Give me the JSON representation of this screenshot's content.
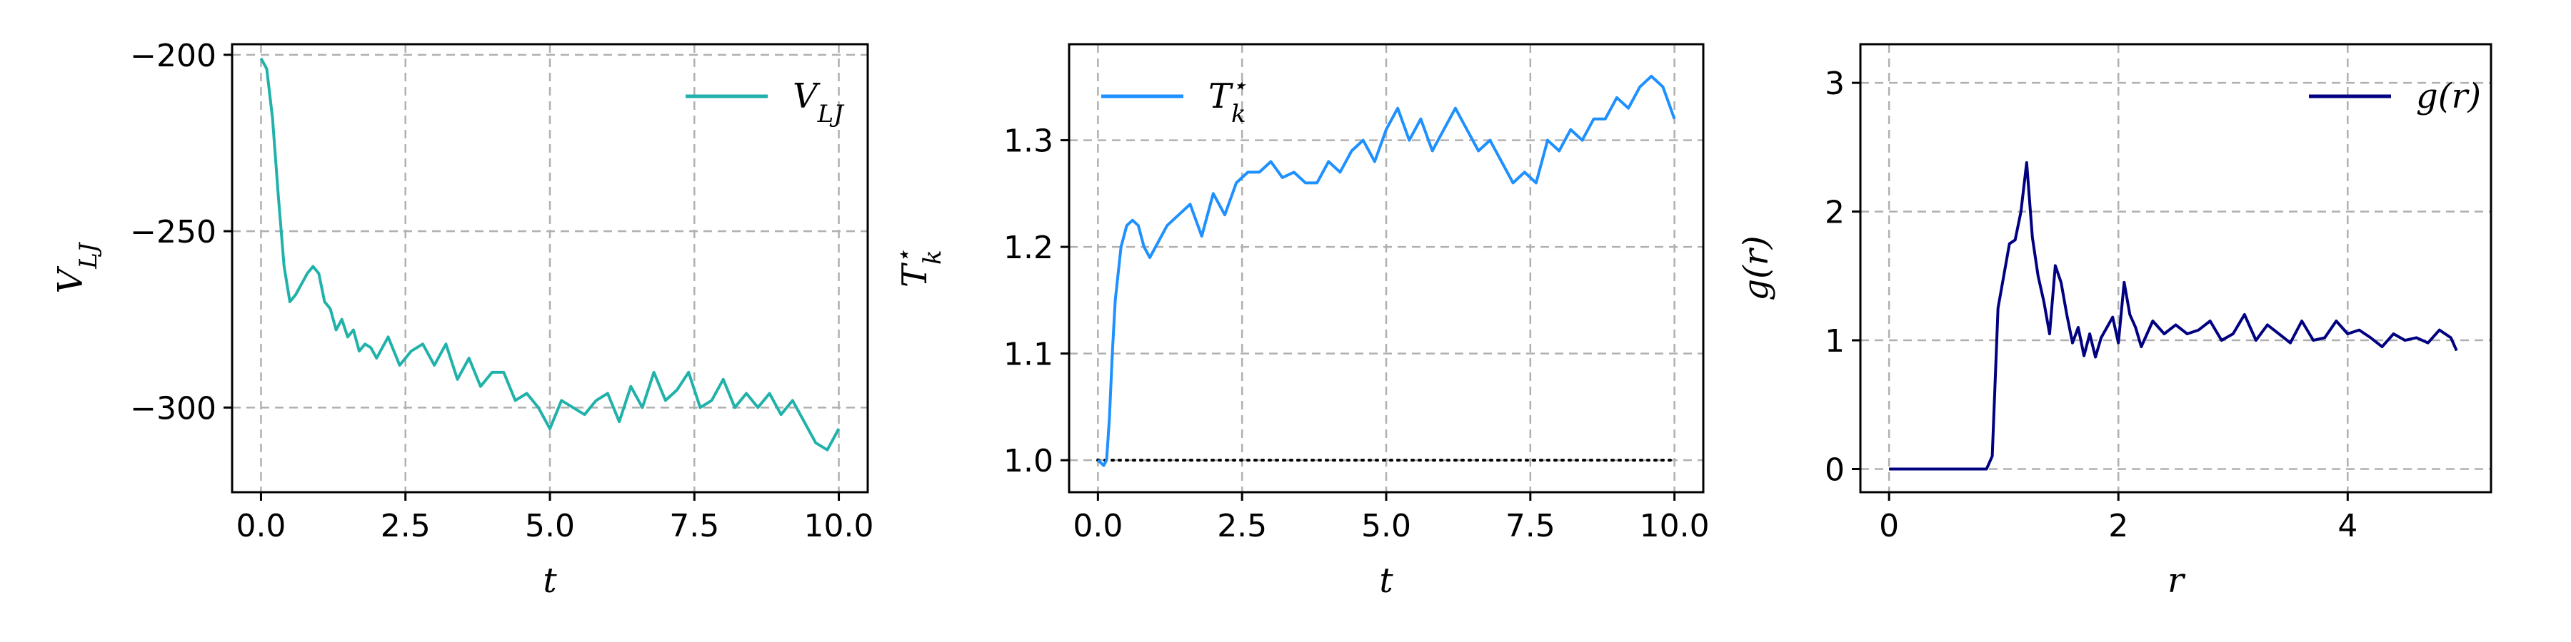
{
  "chart_data": [
    {
      "type": "line",
      "title": "",
      "xlabel": "t",
      "ylabel": "V_LJ",
      "xlim": [
        -0.5,
        10.5
      ],
      "ylim": [
        -324,
        -197
      ],
      "xticks": [
        0.0,
        2.5,
        5.0,
        7.5,
        10.0
      ],
      "xtick_labels": [
        "0.0",
        "2.5",
        "5.0",
        "7.5",
        "10.0"
      ],
      "yticks": [
        -200,
        -250,
        -300
      ],
      "ytick_labels": [
        "−200",
        "−250",
        "−300"
      ],
      "grid": true,
      "legend_position": "upper right",
      "series": [
        {
          "name": "V_LJ",
          "color": "#20b2aa",
          "x": [
            0.0,
            0.1,
            0.2,
            0.3,
            0.4,
            0.5,
            0.6,
            0.7,
            0.8,
            0.9,
            1.0,
            1.1,
            1.2,
            1.3,
            1.4,
            1.5,
            1.6,
            1.7,
            1.8,
            1.9,
            2.0,
            2.2,
            2.4,
            2.6,
            2.8,
            3.0,
            3.2,
            3.4,
            3.6,
            3.8,
            4.0,
            4.2,
            4.4,
            4.6,
            4.8,
            5.0,
            5.2,
            5.4,
            5.6,
            5.8,
            6.0,
            6.2,
            6.4,
            6.6,
            6.8,
            7.0,
            7.2,
            7.4,
            7.6,
            7.8,
            8.0,
            8.2,
            8.4,
            8.6,
            8.8,
            9.0,
            9.2,
            9.4,
            9.6,
            9.8,
            10.0
          ],
          "y": [
            -201,
            -204,
            -218,
            -240,
            -260,
            -270,
            -268,
            -265,
            -262,
            -260,
            -262,
            -270,
            -272,
            -278,
            -275,
            -280,
            -278,
            -284,
            -282,
            -283,
            -286,
            -280,
            -288,
            -284,
            -282,
            -288,
            -282,
            -292,
            -286,
            -294,
            -290,
            -290,
            -298,
            -296,
            -300,
            -306,
            -298,
            -300,
            -302,
            -298,
            -296,
            -304,
            -294,
            -300,
            -290,
            -298,
            -295,
            -290,
            -300,
            -298,
            -292,
            -300,
            -296,
            -300,
            -296,
            -302,
            -298,
            -304,
            -310,
            -312,
            -306
          ]
        }
      ],
      "legend": [
        "V_LJ"
      ]
    },
    {
      "type": "line",
      "title": "",
      "xlabel": "t",
      "ylabel": "T_k*",
      "xlim": [
        -0.5,
        10.5
      ],
      "ylim": [
        0.97,
        1.39
      ],
      "xticks": [
        0.0,
        2.5,
        5.0,
        7.5,
        10.0
      ],
      "xtick_labels": [
        "0.0",
        "2.5",
        "5.0",
        "7.5",
        "10.0"
      ],
      "yticks": [
        1.0,
        1.1,
        1.2,
        1.3
      ],
      "ytick_labels": [
        "1.0",
        "1.1",
        "1.2",
        "1.3"
      ],
      "grid": true,
      "legend_position": "upper left",
      "reference_line": {
        "y": 1.0,
        "style": "dotted",
        "color": "#000000"
      },
      "series": [
        {
          "name": "T_k*",
          "color": "#1e90ff",
          "x": [
            0.0,
            0.1,
            0.15,
            0.2,
            0.25,
            0.3,
            0.4,
            0.5,
            0.6,
            0.7,
            0.8,
            0.9,
            1.0,
            1.2,
            1.4,
            1.6,
            1.8,
            2.0,
            2.2,
            2.4,
            2.6,
            2.8,
            3.0,
            3.2,
            3.4,
            3.6,
            3.8,
            4.0,
            4.2,
            4.4,
            4.6,
            4.8,
            5.0,
            5.2,
            5.4,
            5.6,
            5.8,
            6.0,
            6.2,
            6.4,
            6.6,
            6.8,
            7.0,
            7.2,
            7.4,
            7.6,
            7.8,
            8.0,
            8.2,
            8.4,
            8.6,
            8.8,
            9.0,
            9.2,
            9.4,
            9.6,
            9.8,
            10.0
          ],
          "y": [
            1.0,
            0.995,
            1.0,
            1.04,
            1.1,
            1.15,
            1.2,
            1.22,
            1.225,
            1.22,
            1.2,
            1.19,
            1.2,
            1.22,
            1.23,
            1.24,
            1.21,
            1.25,
            1.23,
            1.26,
            1.27,
            1.27,
            1.28,
            1.265,
            1.27,
            1.26,
            1.26,
            1.28,
            1.27,
            1.29,
            1.3,
            1.28,
            1.31,
            1.33,
            1.3,
            1.32,
            1.29,
            1.31,
            1.33,
            1.31,
            1.29,
            1.3,
            1.28,
            1.26,
            1.27,
            1.26,
            1.3,
            1.29,
            1.31,
            1.3,
            1.32,
            1.32,
            1.34,
            1.33,
            1.35,
            1.36,
            1.35,
            1.32
          ]
        }
      ],
      "legend": [
        "T_k*"
      ]
    },
    {
      "type": "line",
      "title": "",
      "xlabel": "r",
      "ylabel": "g(r)",
      "xlim": [
        -0.25,
        5.25
      ],
      "ylim": [
        -0.18,
        3.3
      ],
      "xticks": [
        0,
        2,
        4
      ],
      "xtick_labels": [
        "0",
        "2",
        "4"
      ],
      "yticks": [
        0,
        1,
        2,
        3
      ],
      "ytick_labels": [
        "0",
        "1",
        "2",
        "3"
      ],
      "grid": true,
      "legend_position": "upper right",
      "series": [
        {
          "name": "g(r)",
          "color": "#000080",
          "x": [
            0.0,
            0.85,
            0.9,
            0.95,
            1.0,
            1.05,
            1.1,
            1.15,
            1.2,
            1.25,
            1.3,
            1.35,
            1.4,
            1.45,
            1.5,
            1.55,
            1.6,
            1.65,
            1.7,
            1.75,
            1.8,
            1.85,
            1.9,
            1.95,
            2.0,
            2.05,
            2.1,
            2.15,
            2.2,
            2.3,
            2.4,
            2.5,
            2.6,
            2.7,
            2.8,
            2.9,
            3.0,
            3.1,
            3.2,
            3.3,
            3.4,
            3.5,
            3.6,
            3.7,
            3.8,
            3.9,
            4.0,
            4.1,
            4.2,
            4.3,
            4.4,
            4.5,
            4.6,
            4.7,
            4.8,
            4.9,
            4.95
          ],
          "y": [
            0.0,
            0.0,
            0.1,
            1.25,
            1.5,
            1.75,
            1.78,
            2.0,
            2.38,
            1.8,
            1.5,
            1.3,
            1.05,
            1.58,
            1.45,
            1.2,
            0.98,
            1.1,
            0.88,
            1.05,
            0.87,
            1.02,
            1.1,
            1.18,
            0.98,
            1.45,
            1.2,
            1.1,
            0.95,
            1.15,
            1.05,
            1.12,
            1.05,
            1.08,
            1.15,
            1.0,
            1.05,
            1.2,
            1.0,
            1.12,
            1.05,
            0.98,
            1.15,
            1.0,
            1.02,
            1.15,
            1.05,
            1.08,
            1.02,
            0.95,
            1.05,
            1.0,
            1.02,
            0.98,
            1.08,
            1.02,
            0.92
          ]
        }
      ],
      "legend": [
        "g(r)"
      ]
    }
  ]
}
